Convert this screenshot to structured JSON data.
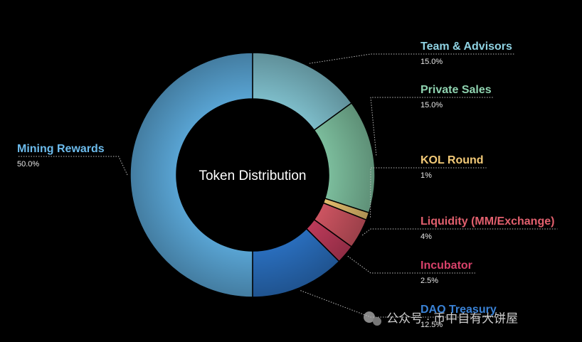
{
  "chart_data": {
    "type": "pie",
    "title": "Token Distribution",
    "categories": [
      "Team & Advisors",
      "Private Sales",
      "KOL Round",
      "Liquidity (MM/Exchange)",
      "Incubator",
      "DAO Treasury",
      "Mining Rewards"
    ],
    "values": [
      15,
      15,
      1,
      4,
      2.5,
      12.5,
      50
    ],
    "value_labels": [
      "15.0%",
      "15.0%",
      "1%",
      "4%",
      "2.5%",
      "12.5%",
      "50.0%"
    ],
    "colors": [
      "#7fbfcc",
      "#7dbf9e",
      "#e6bf6e",
      "#cf5562",
      "#bf3b5b",
      "#2a6fbf",
      "#5aa6d6"
    ],
    "label_colors": [
      "#8fd2e2",
      "#8fd3b0",
      "#f2c977",
      "#e2606e",
      "#d8416a",
      "#3a82d6",
      "#6cbbec"
    ]
  },
  "watermark": "公众号 · 币中自有大饼屋"
}
